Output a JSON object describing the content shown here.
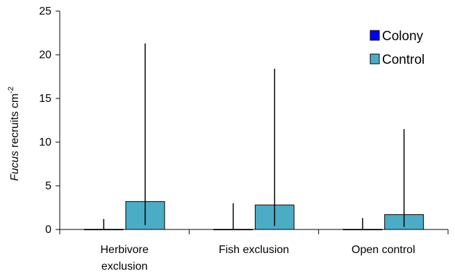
{
  "chart_data": {
    "type": "bar",
    "categories": [
      [
        "Herbivore",
        "exclusion"
      ],
      [
        "Fish exclusion"
      ],
      [
        "Open control"
      ]
    ],
    "series": [
      {
        "name": "Colony",
        "color": "#0000ff",
        "values": [
          0.02,
          0.02,
          0.02
        ],
        "error_upper": [
          1.2,
          3.0,
          1.3
        ]
      },
      {
        "name": "Control",
        "color": "#4bacc6",
        "values": [
          3.2,
          2.8,
          1.7
        ],
        "error_upper": [
          21.3,
          18.4,
          11.5
        ],
        "error_lower": [
          0.5,
          0.4,
          0.3
        ]
      }
    ],
    "ylabel": {
      "italic": "Fucus",
      "text": " recruits cm",
      "superscript": "-2"
    },
    "ylim": [
      0,
      25
    ],
    "yticks": [
      0,
      5,
      10,
      15,
      20,
      25
    ],
    "legend": "top-right",
    "grid": false
  }
}
